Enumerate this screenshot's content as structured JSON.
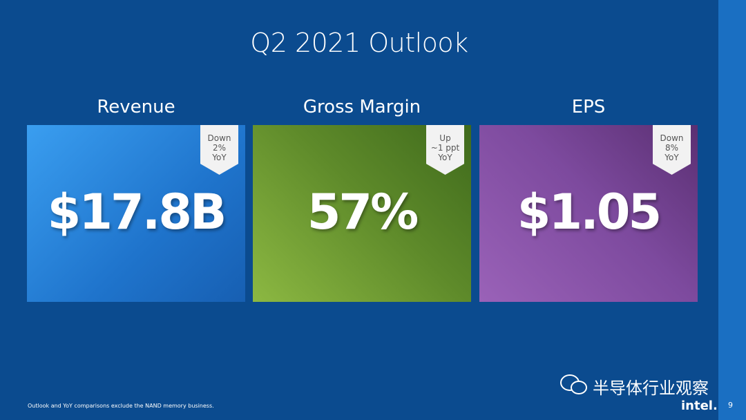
{
  "header": {
    "title": "Q2 2021 Outlook"
  },
  "cards": [
    {
      "label": "Revenue",
      "value": "$17.8B",
      "badge": [
        "Down",
        "2%",
        "YoY"
      ]
    },
    {
      "label": "Gross Margin",
      "value": "57%",
      "badge": [
        "Up",
        "~1 ppt",
        "YoY"
      ]
    },
    {
      "label": "EPS",
      "value": "$1.05",
      "badge": [
        "Down",
        "8%",
        "YoY"
      ]
    }
  ],
  "footer": {
    "note": "Outlook and YoY comparisons exclude the NAND memory business.",
    "watermark": "半导体行业观察",
    "logo": "intel.",
    "page_number": "9"
  }
}
